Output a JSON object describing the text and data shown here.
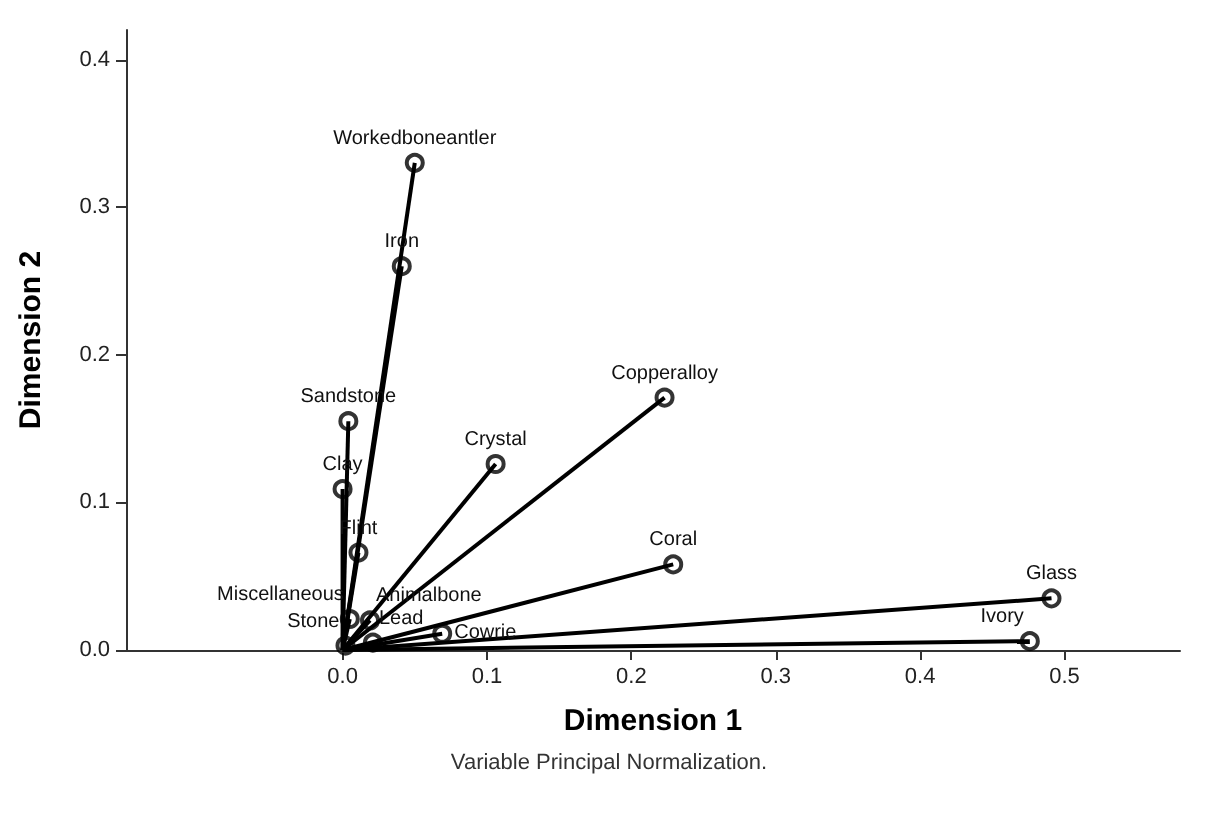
{
  "chart_data": {
    "type": "line",
    "xlabel": "Dimension 1",
    "ylabel": "Dimension 2",
    "xlim": [
      -0.15,
      0.58
    ],
    "ylim": [
      0,
      0.42
    ],
    "xticks": [
      {
        "value": 0,
        "label": "0.0"
      },
      0.1,
      0.2,
      0.3,
      0.4,
      0.5
    ],
    "yticks": [
      {
        "value": 0,
        "label": "0.0"
      },
      0.1,
      0.2,
      0.3,
      0.4
    ],
    "grid": false,
    "series": [
      {
        "color": "#000000",
        "marker": "none",
        "x": [
          0,
          0.476
        ],
        "values": [
          0,
          0.006
        ]
      },
      {
        "color": "#000000",
        "marker": "none",
        "x": [
          0,
          0.491
        ],
        "values": [
          0,
          0.035
        ]
      },
      {
        "color": "#000000",
        "marker": "none",
        "x": [
          0,
          0.05
        ],
        "values": [
          0,
          0.33
        ]
      },
      {
        "color": "#000000",
        "marker": "none",
        "x": [
          0,
          0.041
        ],
        "values": [
          0,
          0.26
        ]
      },
      {
        "color": "#000000",
        "marker": "none",
        "x": [
          0,
          0.004
        ],
        "values": [
          0,
          0.155
        ]
      },
      {
        "color": "#000000",
        "marker": "none",
        "x": [
          0,
          0.223
        ],
        "values": [
          0,
          0.171
        ]
      },
      {
        "color": "#000000",
        "marker": "none",
        "x": [
          0,
          0.106
        ],
        "values": [
          0,
          0.126
        ]
      },
      {
        "color": "#000000",
        "marker": "none",
        "x": [
          0,
          0.0
        ],
        "values": [
          0,
          0.109
        ]
      },
      {
        "color": "#000000",
        "marker": "none",
        "x": [
          0,
          0.011
        ],
        "values": [
          0,
          0.066
        ]
      },
      {
        "color": "#000000",
        "marker": "none",
        "x": [
          0,
          0.229
        ],
        "values": [
          0,
          0.058
        ]
      },
      {
        "color": "#000000",
        "marker": "none",
        "x": [
          0,
          0.005
        ],
        "values": [
          0,
          0.021
        ]
      },
      {
        "color": "#000000",
        "marker": "none",
        "x": [
          0,
          0.019
        ],
        "values": [
          0,
          0.02
        ]
      },
      {
        "color": "#000000",
        "marker": "none",
        "x": [
          0,
          0.069
        ],
        "values": [
          0,
          0.011
        ]
      },
      {
        "type": "scatter",
        "color": "#000000",
        "marker": "circle",
        "x": [
          0.05,
          0.041,
          0.004,
          0.223,
          0.106,
          0.0,
          0.011,
          0.229,
          0.491,
          0.005,
          0.019,
          0.002,
          0.021,
          0.069,
          0.476
        ],
        "values": [
          0.33,
          0.26,
          0.155,
          0.171,
          0.126,
          0.109,
          0.066,
          0.058,
          0.035,
          0.021,
          0.02,
          0.003,
          0.005,
          0.011,
          0.006
        ]
      }
    ],
    "annotations": [
      {
        "text": "Workedboneantler",
        "x": 0.05,
        "y": 0.33
      },
      {
        "text": "Iron",
        "x": 0.041,
        "y": 0.26
      },
      {
        "text": "Sandstone",
        "x": 0.004,
        "y": 0.155
      },
      {
        "text": "Copperalloy",
        "x": 0.223,
        "y": 0.171
      },
      {
        "text": "Crystal",
        "x": 0.106,
        "y": 0.126
      },
      {
        "text": "Clay",
        "x": 0.0,
        "y": 0.109
      },
      {
        "text": "Flint",
        "x": 0.011,
        "y": 0.066
      },
      {
        "text": "Coral",
        "x": 0.229,
        "y": 0.058
      },
      {
        "text": "Glass",
        "x": 0.491,
        "y": 0.035
      },
      {
        "text": "Miscellaneous",
        "x": 0.005,
        "y": 0.021
      },
      {
        "text": "Animalbone",
        "x": 0.019,
        "y": 0.02
      },
      {
        "text": "Stone",
        "x": 0.002,
        "y": 0.003
      },
      {
        "text": "Lead",
        "x": 0.021,
        "y": 0.005
      },
      {
        "text": "Cowrie",
        "x": 0.069,
        "y": 0.011
      },
      {
        "text": "Ivory",
        "x": 0.476,
        "y": 0.006
      },
      "Variable Principal Normalization."
    ]
  }
}
